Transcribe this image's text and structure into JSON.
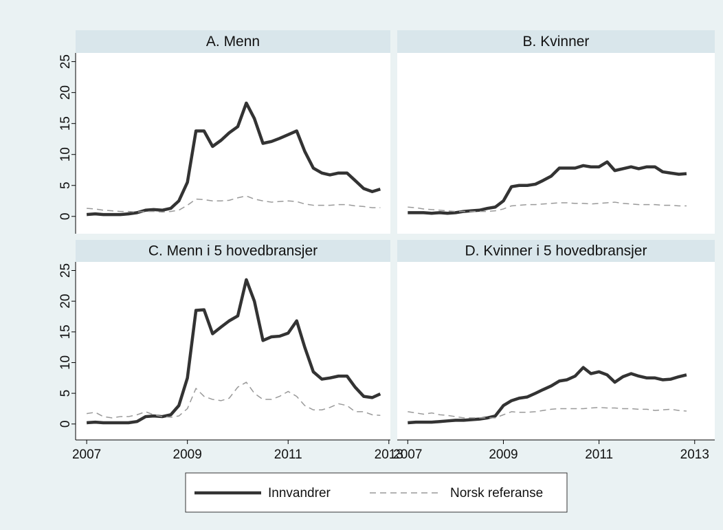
{
  "chart_data": [
    {
      "type": "line",
      "title": "A. Menn",
      "x": [
        2007.0,
        2007.17,
        2007.33,
        2007.5,
        2007.67,
        2007.83,
        2008.0,
        2008.17,
        2008.33,
        2008.5,
        2008.67,
        2008.83,
        2009.0,
        2009.17,
        2009.33,
        2009.5,
        2009.67,
        2009.83,
        2010.0,
        2010.17,
        2010.33,
        2010.5,
        2010.67,
        2010.83,
        2011.0,
        2011.17,
        2011.33,
        2011.5,
        2011.67,
        2011.83,
        2012.0,
        2012.17,
        2012.33,
        2012.5,
        2012.67,
        2012.83
      ],
      "series": [
        {
          "name": "Innvandrer",
          "color": "#333333",
          "values": [
            0.3,
            0.4,
            0.3,
            0.3,
            0.3,
            0.4,
            0.6,
            1.0,
            1.1,
            1.0,
            1.3,
            2.5,
            5.5,
            13.8,
            13.8,
            11.3,
            12.3,
            13.5,
            14.5,
            18.3,
            15.8,
            11.8,
            12.1,
            12.6,
            13.2,
            13.8,
            10.5,
            7.8,
            7.0,
            6.7,
            7.0,
            7.0,
            5.8,
            4.5,
            4.0,
            4.4
          ]
        },
        {
          "name": "Norsk referanse",
          "color": "#999999",
          "values": [
            1.3,
            1.2,
            1.0,
            0.9,
            0.8,
            0.8,
            0.7,
            0.8,
            0.8,
            0.7,
            0.8,
            1.0,
            1.8,
            2.8,
            2.7,
            2.5,
            2.5,
            2.6,
            3.0,
            3.3,
            2.8,
            2.5,
            2.3,
            2.4,
            2.5,
            2.4,
            2.0,
            1.8,
            1.8,
            1.8,
            1.9,
            1.9,
            1.7,
            1.6,
            1.4,
            1.4
          ]
        }
      ],
      "xlim": [
        2006.78,
        2013.03
      ],
      "ylim": [
        -2.8,
        26.4
      ],
      "yticks": [
        0,
        5,
        10,
        15,
        20,
        25
      ]
    },
    {
      "type": "line",
      "title": "B. Kvinner",
      "x": [
        2007.0,
        2007.17,
        2007.33,
        2007.5,
        2007.67,
        2007.83,
        2008.0,
        2008.17,
        2008.33,
        2008.5,
        2008.67,
        2008.83,
        2009.0,
        2009.17,
        2009.33,
        2009.5,
        2009.67,
        2009.83,
        2010.0,
        2010.17,
        2010.33,
        2010.5,
        2010.67,
        2010.83,
        2011.0,
        2011.17,
        2011.33,
        2011.5,
        2011.67,
        2011.83,
        2012.0,
        2012.17,
        2012.33,
        2012.5,
        2012.67,
        2012.83
      ],
      "series": [
        {
          "name": "Innvandrer",
          "color": "#333333",
          "values": [
            0.6,
            0.6,
            0.6,
            0.5,
            0.6,
            0.5,
            0.6,
            0.8,
            0.9,
            1.0,
            1.3,
            1.5,
            2.5,
            4.8,
            5.0,
            5.0,
            5.2,
            5.8,
            6.5,
            7.8,
            7.8,
            7.8,
            8.2,
            8.0,
            8.0,
            8.8,
            7.4,
            7.7,
            8.0,
            7.7,
            8.0,
            8.0,
            7.2,
            7.0,
            6.8,
            6.9
          ]
        },
        {
          "name": "Norsk referanse",
          "color": "#999999",
          "values": [
            1.5,
            1.4,
            1.2,
            1.1,
            1.0,
            0.9,
            0.8,
            0.8,
            0.8,
            0.8,
            0.8,
            0.9,
            1.2,
            1.7,
            1.8,
            1.9,
            1.9,
            2.0,
            2.1,
            2.2,
            2.2,
            2.1,
            2.1,
            2.0,
            2.1,
            2.2,
            2.3,
            2.1,
            2.0,
            1.9,
            1.9,
            1.9,
            1.8,
            1.8,
            1.7,
            1.7
          ]
        }
      ],
      "xlim": [
        2006.78,
        2013.42
      ],
      "ylim": [
        -2.8,
        26.4
      ]
    },
    {
      "type": "line",
      "title": "C. Menn i 5 hovedbransjer",
      "x": [
        2007.0,
        2007.17,
        2007.33,
        2007.5,
        2007.67,
        2007.83,
        2008.0,
        2008.17,
        2008.33,
        2008.5,
        2008.67,
        2008.83,
        2009.0,
        2009.17,
        2009.33,
        2009.5,
        2009.67,
        2009.83,
        2010.0,
        2010.17,
        2010.33,
        2010.5,
        2010.67,
        2010.83,
        2011.0,
        2011.17,
        2011.33,
        2011.5,
        2011.67,
        2011.83,
        2012.0,
        2012.17,
        2012.33,
        2012.5,
        2012.67,
        2012.83
      ],
      "series": [
        {
          "name": "Innvandrer",
          "color": "#333333",
          "values": [
            0.2,
            0.3,
            0.2,
            0.2,
            0.2,
            0.2,
            0.4,
            1.2,
            1.3,
            1.2,
            1.5,
            3.0,
            7.5,
            18.5,
            18.6,
            14.7,
            15.8,
            16.8,
            17.6,
            23.5,
            20.0,
            13.6,
            14.2,
            14.3,
            14.8,
            16.8,
            12.5,
            8.5,
            7.3,
            7.5,
            7.8,
            7.8,
            6.0,
            4.5,
            4.3,
            4.9
          ]
        },
        {
          "name": "Norsk referanse",
          "color": "#999999",
          "values": [
            1.7,
            1.9,
            1.2,
            1.0,
            1.2,
            1.2,
            1.5,
            2.0,
            1.5,
            1.2,
            1.1,
            1.3,
            2.5,
            5.8,
            4.5,
            4.0,
            3.8,
            4.2,
            6.0,
            6.8,
            5.0,
            4.0,
            4.0,
            4.5,
            5.3,
            4.5,
            3.0,
            2.3,
            2.3,
            2.7,
            3.3,
            3.0,
            2.0,
            2.0,
            1.5,
            1.4
          ]
        }
      ],
      "xlim": [
        2006.78,
        2013.03
      ],
      "ylim": [
        -2.6,
        26.4
      ],
      "xticks": [
        2007,
        2009,
        2011,
        2013
      ],
      "yticks": [
        0,
        5,
        10,
        15,
        20,
        25
      ]
    },
    {
      "type": "line",
      "title": "D. Kvinner i 5 hovedbransjer",
      "x": [
        2007.0,
        2007.17,
        2007.33,
        2007.5,
        2007.67,
        2007.83,
        2008.0,
        2008.17,
        2008.33,
        2008.5,
        2008.67,
        2008.83,
        2009.0,
        2009.17,
        2009.33,
        2009.5,
        2009.67,
        2009.83,
        2010.0,
        2010.17,
        2010.33,
        2010.5,
        2010.67,
        2010.83,
        2011.0,
        2011.17,
        2011.33,
        2011.5,
        2011.67,
        2011.83,
        2012.0,
        2012.17,
        2012.33,
        2012.5,
        2012.67,
        2012.83
      ],
      "series": [
        {
          "name": "Innvandrer",
          "color": "#333333",
          "values": [
            0.2,
            0.3,
            0.3,
            0.3,
            0.4,
            0.5,
            0.6,
            0.6,
            0.7,
            0.8,
            1.0,
            1.3,
            3.0,
            3.8,
            4.2,
            4.4,
            5.0,
            5.6,
            6.2,
            7.0,
            7.2,
            7.8,
            9.2,
            8.2,
            8.5,
            8.0,
            6.8,
            7.7,
            8.2,
            7.8,
            7.5,
            7.5,
            7.2,
            7.3,
            7.7,
            8.0
          ]
        },
        {
          "name": "Norsk referanse",
          "color": "#999999",
          "values": [
            2.0,
            1.8,
            1.6,
            1.8,
            1.5,
            1.4,
            1.2,
            1.0,
            1.0,
            1.0,
            1.0,
            1.0,
            1.5,
            2.0,
            1.9,
            1.9,
            2.0,
            2.2,
            2.4,
            2.5,
            2.5,
            2.5,
            2.5,
            2.6,
            2.7,
            2.6,
            2.6,
            2.5,
            2.5,
            2.4,
            2.4,
            2.2,
            2.3,
            2.4,
            2.2,
            2.1
          ]
        }
      ],
      "xlim": [
        2006.78,
        2013.42
      ],
      "ylim": [
        -2.6,
        26.4
      ],
      "xticks": [
        2007,
        2009,
        2011,
        2013
      ]
    }
  ]
}
